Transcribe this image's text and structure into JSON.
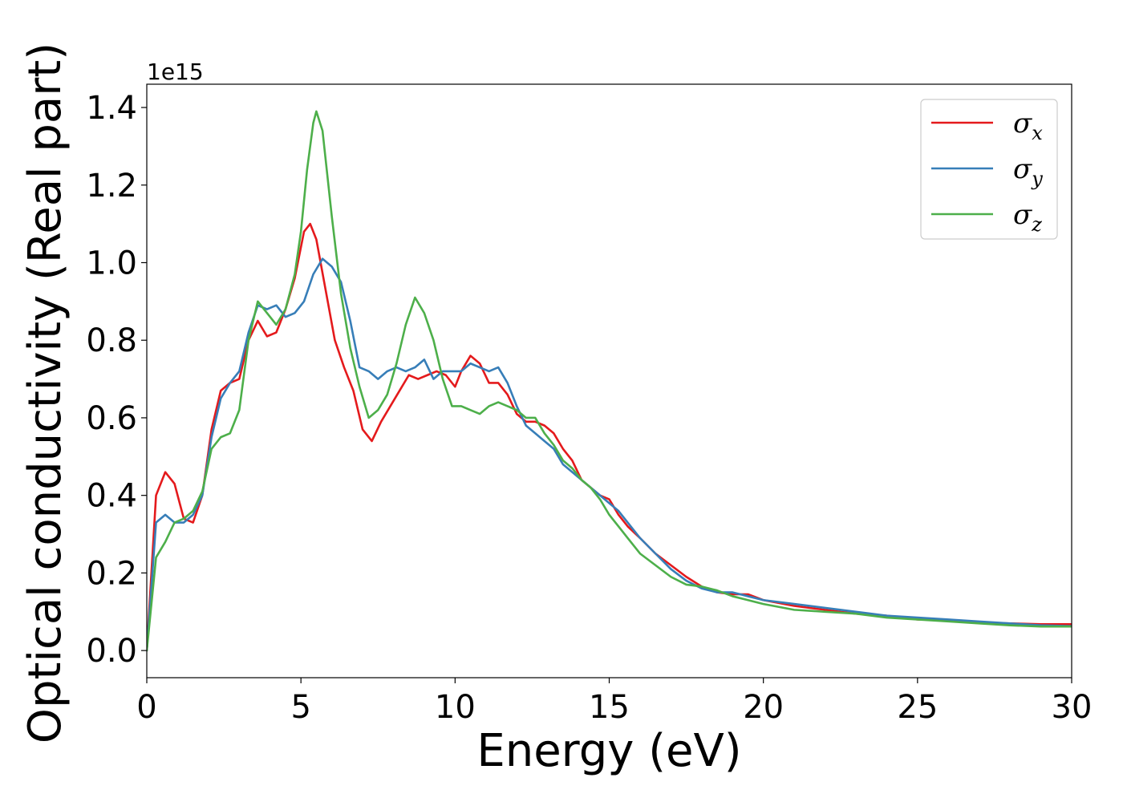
{
  "chart_data": {
    "type": "line",
    "xlabel": "Energy (eV)",
    "ylabel": "Optical conductivity (Real part)",
    "y_offset_label": "1e15",
    "xlim": [
      0,
      30
    ],
    "ylim": [
      -0.07,
      1.46
    ],
    "xticks": [
      0,
      5,
      10,
      15,
      20,
      25,
      30
    ],
    "xtick_labels": [
      "0",
      "5",
      "10",
      "15",
      "20",
      "25",
      "30"
    ],
    "yticks": [
      0.0,
      0.2,
      0.4,
      0.6,
      0.8,
      1.0,
      1.2,
      1.4
    ],
    "ytick_labels": [
      "0.0",
      "0.2",
      "0.4",
      "0.6",
      "0.8",
      "1.0",
      "1.2",
      "1.4"
    ],
    "grid": false,
    "legend_position": "top-right",
    "series": [
      {
        "name": "σx",
        "symbol": "σ",
        "subscript": "x",
        "color": "#e41a1c",
        "x": [
          0,
          0.3,
          0.6,
          0.9,
          1.2,
          1.5,
          1.8,
          2.1,
          2.4,
          2.7,
          3.0,
          3.3,
          3.6,
          3.9,
          4.2,
          4.5,
          4.8,
          5.1,
          5.3,
          5.5,
          5.8,
          6.1,
          6.4,
          6.7,
          7.0,
          7.3,
          7.6,
          7.9,
          8.2,
          8.5,
          8.8,
          9.1,
          9.4,
          9.7,
          10.0,
          10.2,
          10.5,
          10.8,
          11.1,
          11.4,
          11.7,
          12.0,
          12.3,
          12.6,
          12.9,
          13.2,
          13.5,
          13.8,
          14.1,
          14.4,
          14.7,
          15.0,
          15.3,
          15.6,
          16.0,
          16.5,
          17.0,
          17.5,
          18.0,
          18.5,
          19.0,
          19.5,
          20.0,
          21.0,
          22.0,
          23.0,
          24.0,
          25.0,
          26.0,
          27.0,
          28.0,
          29.0,
          30.0
        ],
        "y": [
          0.0,
          0.4,
          0.46,
          0.43,
          0.34,
          0.33,
          0.4,
          0.57,
          0.67,
          0.69,
          0.7,
          0.8,
          0.85,
          0.81,
          0.82,
          0.88,
          0.96,
          1.08,
          1.1,
          1.06,
          0.93,
          0.8,
          0.73,
          0.67,
          0.57,
          0.54,
          0.59,
          0.63,
          0.67,
          0.71,
          0.7,
          0.71,
          0.72,
          0.71,
          0.68,
          0.72,
          0.76,
          0.74,
          0.69,
          0.69,
          0.66,
          0.61,
          0.59,
          0.59,
          0.58,
          0.56,
          0.52,
          0.49,
          0.44,
          0.42,
          0.4,
          0.39,
          0.35,
          0.32,
          0.29,
          0.25,
          0.22,
          0.19,
          0.165,
          0.15,
          0.145,
          0.145,
          0.13,
          0.115,
          0.105,
          0.095,
          0.09,
          0.08,
          0.078,
          0.072,
          0.07,
          0.068,
          0.068
        ]
      },
      {
        "name": "σy",
        "symbol": "σ",
        "subscript": "y",
        "color": "#377eb8",
        "x": [
          0,
          0.3,
          0.6,
          0.9,
          1.2,
          1.5,
          1.8,
          2.1,
          2.4,
          2.7,
          3.0,
          3.3,
          3.6,
          3.9,
          4.2,
          4.5,
          4.8,
          5.1,
          5.4,
          5.7,
          6.0,
          6.3,
          6.6,
          6.9,
          7.2,
          7.5,
          7.8,
          8.1,
          8.4,
          8.7,
          9.0,
          9.3,
          9.6,
          9.9,
          10.2,
          10.5,
          10.8,
          11.1,
          11.4,
          11.7,
          12.0,
          12.3,
          12.6,
          12.9,
          13.2,
          13.5,
          13.8,
          14.1,
          14.4,
          14.7,
          15.0,
          15.3,
          15.6,
          16.0,
          16.5,
          17.0,
          17.5,
          18.0,
          18.5,
          19.0,
          19.5,
          20.0,
          21.0,
          22.0,
          23.0,
          24.0,
          25.0,
          26.0,
          27.0,
          28.0,
          29.0,
          30.0
        ],
        "y": [
          0.0,
          0.33,
          0.35,
          0.33,
          0.33,
          0.35,
          0.4,
          0.55,
          0.65,
          0.69,
          0.72,
          0.82,
          0.89,
          0.88,
          0.89,
          0.86,
          0.87,
          0.9,
          0.97,
          1.01,
          0.99,
          0.95,
          0.85,
          0.73,
          0.72,
          0.7,
          0.72,
          0.73,
          0.72,
          0.73,
          0.75,
          0.7,
          0.72,
          0.72,
          0.72,
          0.74,
          0.73,
          0.72,
          0.73,
          0.69,
          0.63,
          0.58,
          0.56,
          0.54,
          0.52,
          0.48,
          0.46,
          0.44,
          0.42,
          0.4,
          0.38,
          0.36,
          0.33,
          0.29,
          0.25,
          0.21,
          0.18,
          0.16,
          0.15,
          0.15,
          0.14,
          0.13,
          0.12,
          0.11,
          0.1,
          0.09,
          0.085,
          0.08,
          0.075,
          0.07,
          0.065,
          0.063
        ]
      },
      {
        "name": "σz",
        "symbol": "σ",
        "subscript": "z",
        "color": "#4daf4a",
        "x": [
          0,
          0.3,
          0.6,
          0.9,
          1.2,
          1.5,
          1.8,
          2.1,
          2.4,
          2.7,
          3.0,
          3.3,
          3.6,
          3.9,
          4.2,
          4.5,
          4.8,
          5.0,
          5.2,
          5.4,
          5.5,
          5.7,
          6.0,
          6.3,
          6.6,
          6.9,
          7.2,
          7.5,
          7.8,
          8.1,
          8.4,
          8.7,
          9.0,
          9.3,
          9.6,
          9.9,
          10.2,
          10.5,
          10.8,
          11.1,
          11.4,
          11.7,
          12.0,
          12.3,
          12.6,
          12.9,
          13.2,
          13.5,
          13.8,
          14.1,
          14.4,
          14.7,
          15.0,
          15.3,
          15.6,
          16.0,
          16.5,
          17.0,
          17.5,
          18.0,
          18.5,
          19.0,
          19.5,
          20.0,
          21.0,
          22.0,
          23.0,
          24.0,
          25.0,
          26.0,
          27.0,
          28.0,
          29.0,
          30.0
        ],
        "y": [
          0.0,
          0.24,
          0.28,
          0.33,
          0.34,
          0.36,
          0.41,
          0.52,
          0.55,
          0.56,
          0.62,
          0.8,
          0.9,
          0.87,
          0.84,
          0.88,
          0.97,
          1.08,
          1.24,
          1.36,
          1.39,
          1.34,
          1.12,
          0.92,
          0.78,
          0.68,
          0.6,
          0.62,
          0.66,
          0.74,
          0.84,
          0.91,
          0.87,
          0.8,
          0.7,
          0.63,
          0.63,
          0.62,
          0.61,
          0.63,
          0.64,
          0.63,
          0.62,
          0.6,
          0.6,
          0.56,
          0.53,
          0.49,
          0.47,
          0.44,
          0.42,
          0.39,
          0.35,
          0.32,
          0.29,
          0.25,
          0.22,
          0.19,
          0.17,
          0.165,
          0.155,
          0.14,
          0.13,
          0.12,
          0.105,
          0.1,
          0.095,
          0.085,
          0.08,
          0.075,
          0.07,
          0.065,
          0.062,
          0.062
        ]
      }
    ]
  }
}
